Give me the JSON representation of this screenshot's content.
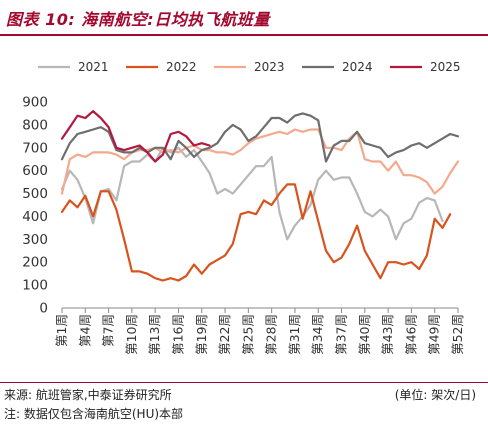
{
  "figure": {
    "title": "图表 10:  海南航空:日均执飞航班量",
    "source": "来源: 航班管家,中泰证券研究所",
    "unit": "(单位: 架次/日)",
    "note": "注: 数据仅包含海南航空(HU)本部"
  },
  "chart_data": {
    "type": "line",
    "ylim": [
      0,
      900
    ],
    "yticks": [
      0,
      100,
      200,
      300,
      400,
      500,
      600,
      700,
      800,
      900
    ],
    "x": [
      1,
      2,
      3,
      4,
      5,
      6,
      7,
      8,
      9,
      10,
      11,
      12,
      13,
      14,
      15,
      16,
      17,
      18,
      19,
      20,
      21,
      22,
      23,
      24,
      25,
      26,
      27,
      28,
      29,
      30,
      31,
      32,
      33,
      34,
      35,
      36,
      37,
      38,
      39,
      40,
      41,
      42,
      43,
      44,
      45,
      46,
      47,
      48,
      49,
      50,
      51,
      52
    ],
    "xtick_labels": [
      "第1周",
      "第4周",
      "第7周",
      "第10周",
      "第13周",
      "第16周",
      "第19周",
      "第22周",
      "第25周",
      "第28周",
      "第31周",
      "第34周",
      "第37周",
      "第40周",
      "第43周",
      "第46周",
      "第49周",
      "第52周"
    ],
    "grid": false,
    "legend_position": "top",
    "series": [
      {
        "name": "2021",
        "color": "#b7b7b7",
        "values": [
          520,
          600,
          560,
          480,
          370,
          510,
          520,
          470,
          620,
          640,
          640,
          670,
          640,
          700,
          680,
          700,
          660,
          690,
          640,
          590,
          500,
          520,
          500,
          540,
          580,
          620,
          620,
          660,
          420,
          300,
          360,
          400,
          450,
          560,
          600,
          560,
          570,
          570,
          500,
          420,
          400,
          430,
          400,
          300,
          370,
          390,
          460,
          480,
          470,
          380,
          null,
          null
        ]
      },
      {
        "name": "2022",
        "color": "#d9531e",
        "values": [
          420,
          470,
          440,
          490,
          400,
          510,
          510,
          430,
          300,
          160,
          160,
          150,
          130,
          120,
          130,
          120,
          140,
          190,
          150,
          190,
          210,
          230,
          280,
          410,
          420,
          410,
          470,
          450,
          500,
          540,
          540,
          390,
          510,
          380,
          250,
          200,
          220,
          280,
          360,
          250,
          190,
          130,
          200,
          200,
          190,
          200,
          170,
          230,
          390,
          350,
          410,
          null
        ]
      },
      {
        "name": "2023",
        "color": "#f4a98d",
        "values": [
          500,
          650,
          670,
          660,
          680,
          680,
          680,
          670,
          650,
          680,
          690,
          690,
          700,
          680,
          690,
          680,
          700,
          710,
          690,
          690,
          680,
          680,
          670,
          690,
          720,
          740,
          750,
          760,
          770,
          760,
          780,
          770,
          780,
          780,
          700,
          700,
          690,
          740,
          770,
          650,
          640,
          640,
          600,
          640,
          580,
          580,
          570,
          550,
          500,
          530,
          590,
          640
        ]
      },
      {
        "name": "2024",
        "color": "#6e6e6e",
        "values": [
          650,
          720,
          760,
          770,
          780,
          790,
          770,
          690,
          680,
          680,
          700,
          680,
          700,
          700,
          650,
          730,
          700,
          660,
          690,
          700,
          720,
          770,
          800,
          780,
          730,
          750,
          790,
          830,
          830,
          810,
          840,
          850,
          840,
          820,
          640,
          710,
          730,
          730,
          770,
          720,
          710,
          700,
          660,
          680,
          690,
          710,
          720,
          700,
          720,
          740,
          760,
          750
        ]
      },
      {
        "name": "2025",
        "color": "#b5173f",
        "values": [
          740,
          790,
          840,
          830,
          860,
          830,
          790,
          700,
          690,
          700,
          710,
          680,
          640,
          670,
          760,
          770,
          750,
          710,
          720,
          710,
          null,
          null,
          null,
          null,
          null,
          null,
          null,
          null,
          null,
          null,
          null,
          null,
          null,
          null,
          null,
          null,
          null,
          null,
          null,
          null,
          null,
          null,
          null,
          null,
          null,
          null,
          null,
          null,
          null,
          null,
          null,
          null
        ]
      }
    ]
  }
}
